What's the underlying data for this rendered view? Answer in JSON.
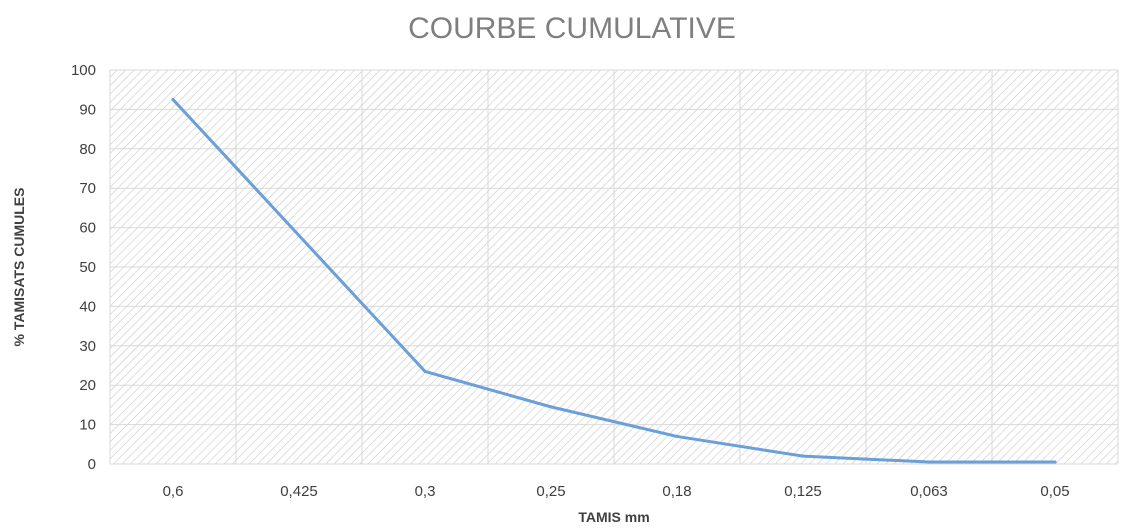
{
  "chart_data": {
    "type": "line",
    "title": "COURBE CUMULATIVE",
    "xlabel": "TAMIS mm",
    "ylabel": "% TAMISATS CUMULES",
    "categories": [
      "0,6",
      "0,425",
      "0,3",
      "0,25",
      "0,18",
      "0,125",
      "0,063",
      "0,05"
    ],
    "series": [
      {
        "values": [
          92.5,
          58,
          23.5,
          14.5,
          7,
          2,
          0.5,
          0.5
        ]
      }
    ],
    "ylim": [
      0,
      100
    ],
    "yticks": [
      "0",
      "10",
      "20",
      "30",
      "40",
      "50",
      "60",
      "70",
      "80",
      "90",
      "100"
    ],
    "grid": true,
    "legend": "none",
    "colors": {
      "line": "#6a9fd8",
      "grid": "#d9d9d9",
      "hatch": "#bfbfbf"
    }
  }
}
